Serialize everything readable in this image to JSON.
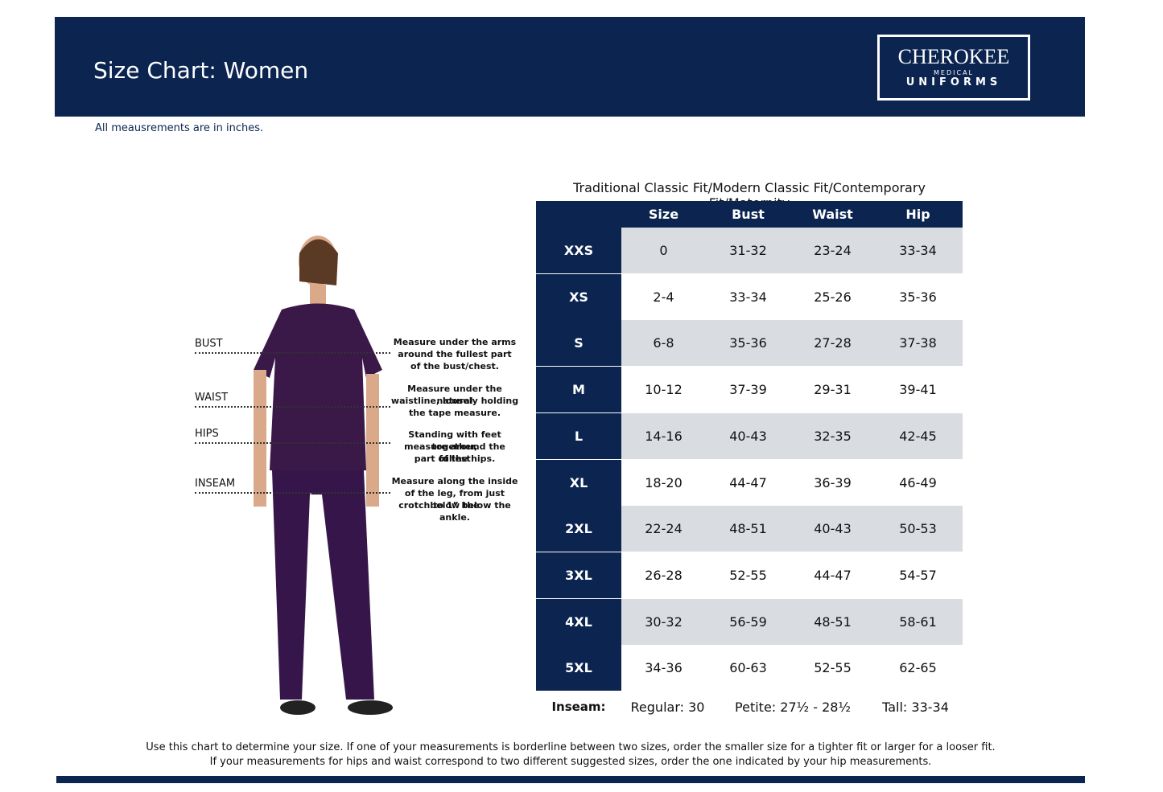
{
  "header": {
    "title": "Size Chart: Women",
    "logo": {
      "brand": "CHEROKEE",
      "line": "MEDICAL",
      "sub": "UNIFORMS"
    }
  },
  "note": "All meausrements are in inches.",
  "measurements": [
    {
      "label": "BUST",
      "description": [
        "Measure under the arms",
        "around the fullest part",
        "of the bust/chest."
      ]
    },
    {
      "label": "WAIST",
      "description": [
        "Measure under the natural",
        "waistline, loosely holding",
        "the tape measure."
      ]
    },
    {
      "label": "HIPS",
      "description": [
        "Standing with feet together,",
        "measure around the fullest",
        "part of the hips."
      ]
    },
    {
      "label": "INSEAM",
      "description": [
        "Measure along the inside",
        "of the leg, from just below the",
        "crotch to 1” below the ankle."
      ]
    }
  ],
  "table": {
    "caption": "Traditional Classic Fit/Modern Classic Fit/Contemporary Fit/Maternity",
    "header": [
      "Size",
      "Bust",
      "Waist",
      "Hip"
    ],
    "rows": [
      [
        "XXS",
        "0",
        "31-32",
        "23-24",
        "33-34"
      ],
      [
        "XS",
        "2-4",
        "33-34",
        "25-26",
        "35-36"
      ],
      [
        "S",
        "6-8",
        "35-36",
        "27-28",
        "37-38"
      ],
      [
        "M",
        "10-12",
        "37-39",
        "29-31",
        "39-41"
      ],
      [
        "L",
        "14-16",
        "40-43",
        "32-35",
        "42-45"
      ],
      [
        "XL",
        "18-20",
        "44-47",
        "36-39",
        "46-49"
      ],
      [
        "2XL",
        "22-24",
        "48-51",
        "40-43",
        "50-53"
      ],
      [
        "3XL",
        "26-28",
        "52-55",
        "44-47",
        "54-57"
      ],
      [
        "4XL",
        "30-32",
        "56-59",
        "48-51",
        "58-61"
      ],
      [
        "5XL",
        "34-36",
        "60-63",
        "52-55",
        "62-65"
      ]
    ],
    "inseam": {
      "label": "Inseam:",
      "values": [
        "Regular: 30",
        "Petite: 27½ - 28½",
        "Tall: 33-34"
      ]
    }
  },
  "footer": [
    "Use this chart to determine your size. If one of your measurements is borderline between two sizes, order the smaller size for a tighter fit or larger for a looser fit.",
    "If your measurements for hips and waist correspond to two different suggested sizes, order the one indicated by your hip measurements."
  ]
}
